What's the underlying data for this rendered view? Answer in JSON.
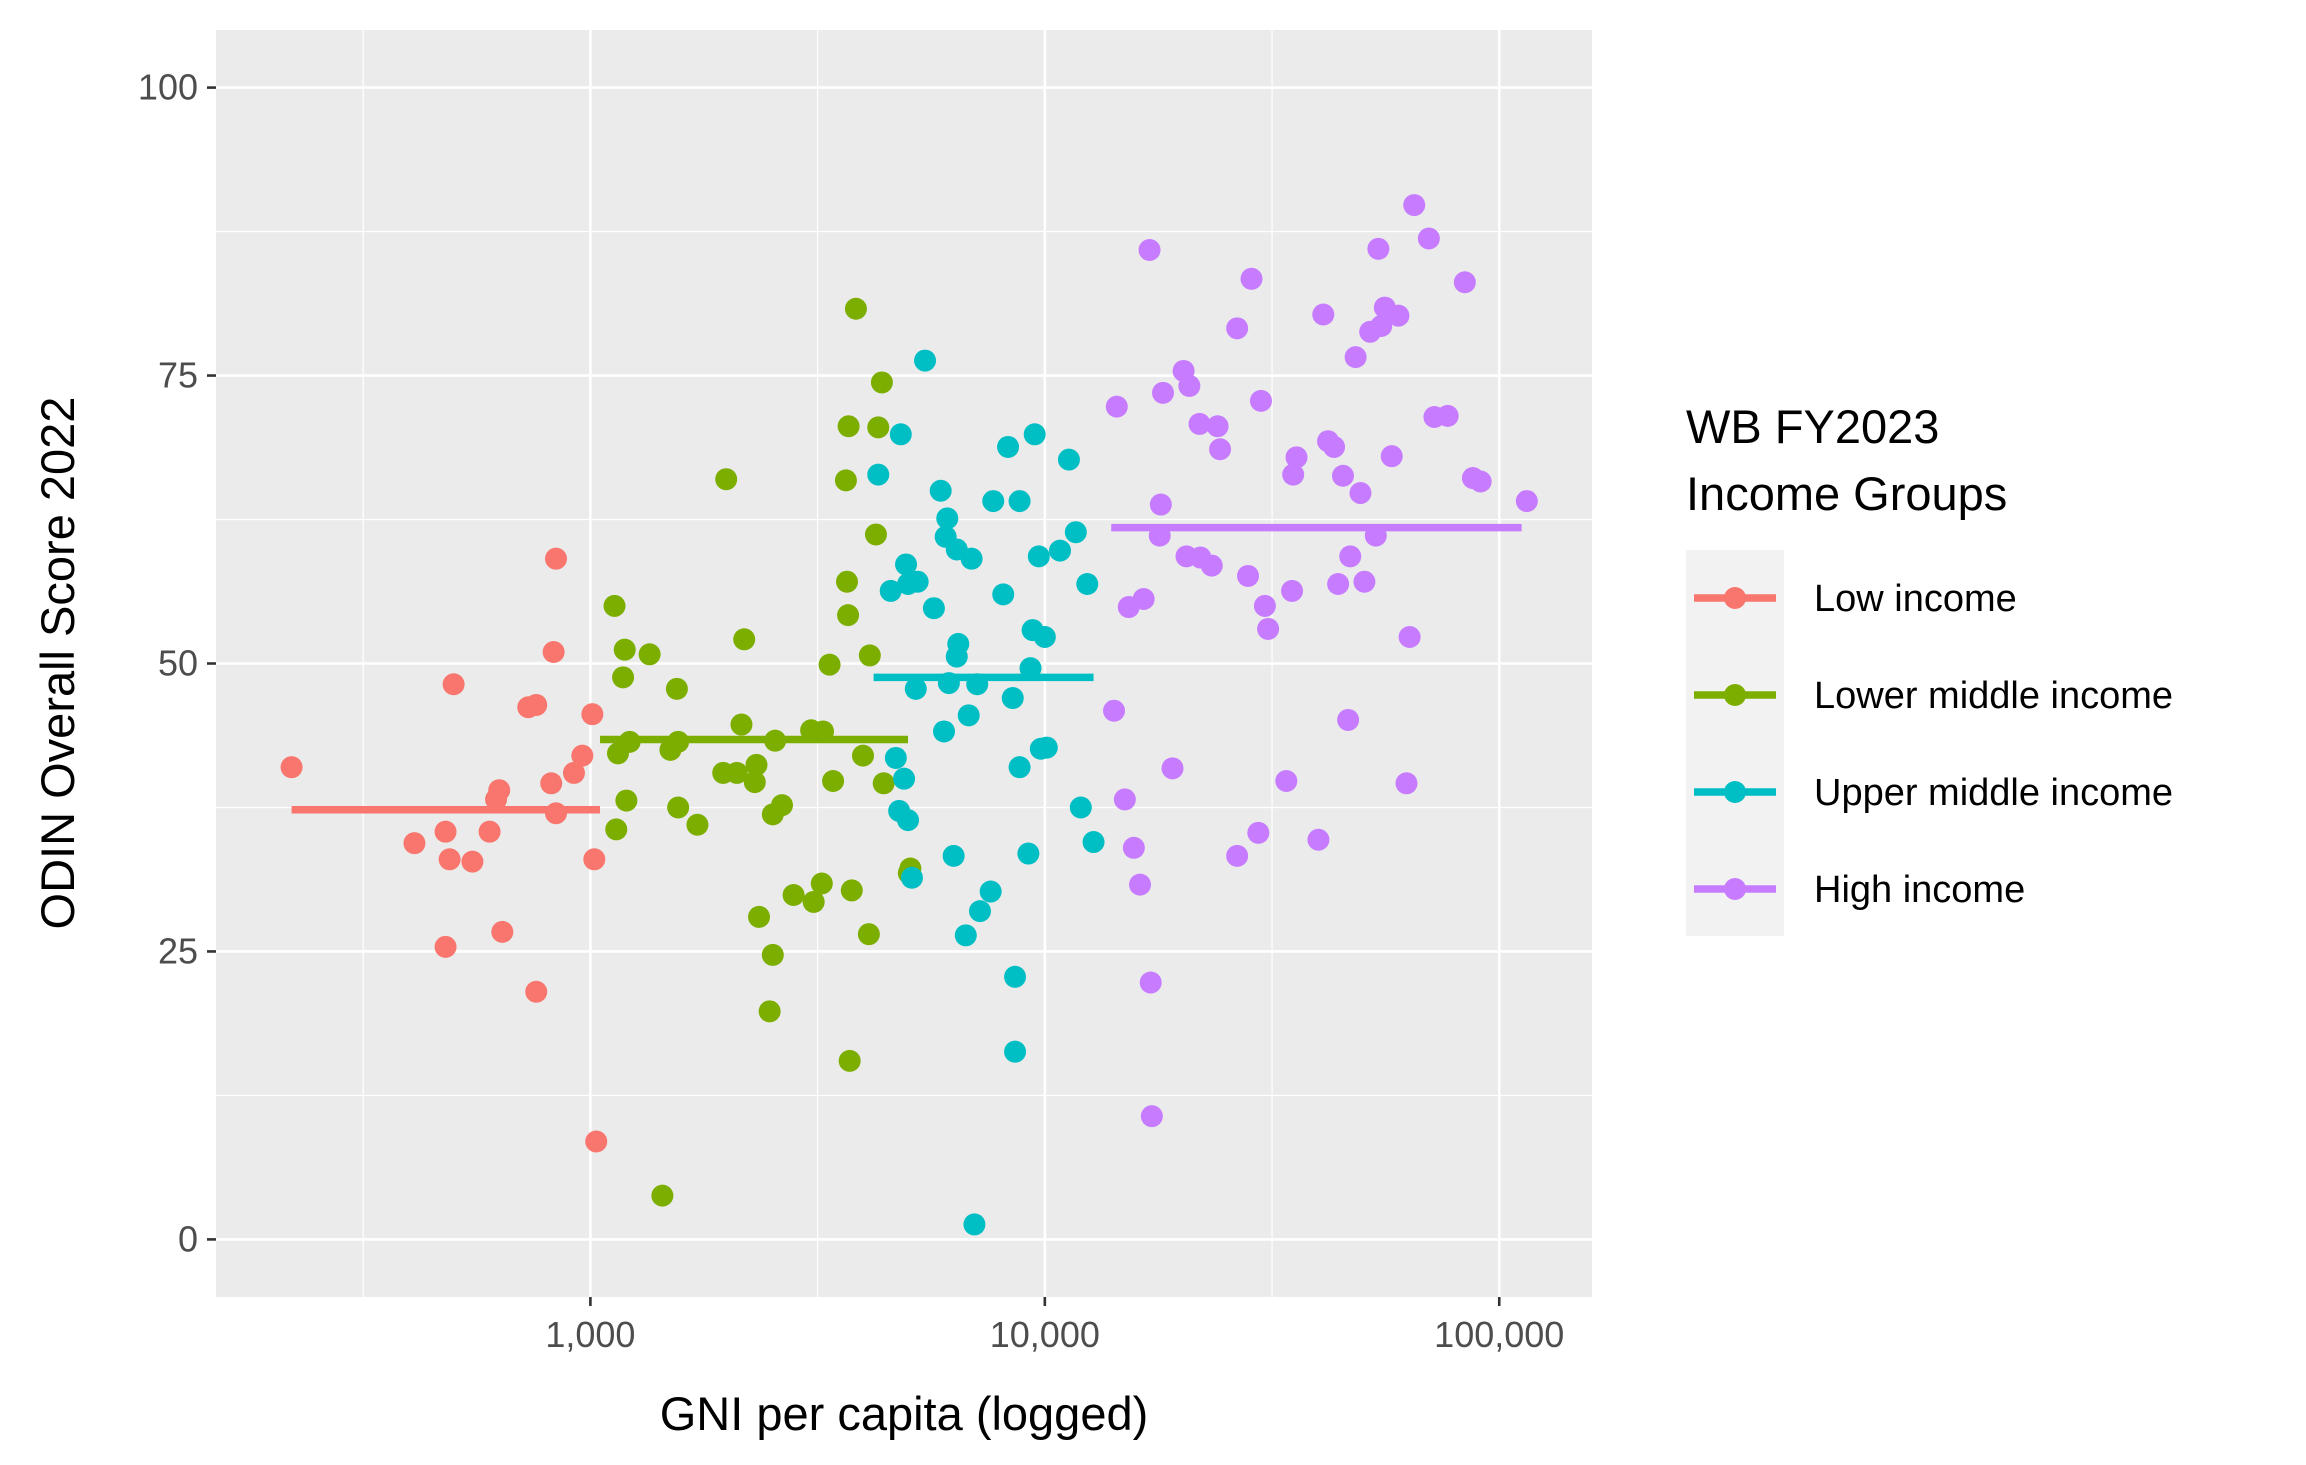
{
  "chart_data": {
    "type": "scatter",
    "xlabel": "GNI per capita (logged)",
    "ylabel": "ODIN Overall Score 2022",
    "x_scale": "log10",
    "xlim": [
      150,
      160000
    ],
    "ylim": [
      -5,
      105
    ],
    "x_ticks": [
      {
        "value": 1000,
        "label": "1,000"
      },
      {
        "value": 10000,
        "label": "10,000"
      },
      {
        "value": 100000,
        "label": "100,000"
      }
    ],
    "y_ticks": [
      {
        "value": 0,
        "label": "0"
      },
      {
        "value": 25,
        "label": "25"
      },
      {
        "value": 50,
        "label": "50"
      },
      {
        "value": 75,
        "label": "75"
      },
      {
        "value": 100,
        "label": "100"
      }
    ],
    "grid": true,
    "legend_position": "right",
    "legend_title": [
      "WB FY2023",
      "Income Groups"
    ],
    "series": [
      {
        "name": "Low income",
        "color": "#F8766D",
        "mean_line": {
          "x_start": 220,
          "x_end": 1050,
          "y": 37.3
        },
        "points": [
          [
            220,
            41
          ],
          [
            500,
            48.2
          ],
          [
            410,
            34.4
          ],
          [
            480,
            35.4
          ],
          [
            490,
            33
          ],
          [
            480,
            25.4
          ],
          [
            550,
            32.8
          ],
          [
            600,
            35.4
          ],
          [
            620,
            38.2
          ],
          [
            630,
            39
          ],
          [
            640,
            26.7
          ],
          [
            730,
            46.2
          ],
          [
            760,
            46.4
          ],
          [
            760,
            21.5
          ],
          [
            820,
            39.6
          ],
          [
            830,
            51
          ],
          [
            840,
            59.1
          ],
          [
            840,
            37
          ],
          [
            920,
            40.5
          ],
          [
            960,
            42
          ],
          [
            1010,
            45.6
          ],
          [
            1020,
            33
          ],
          [
            1030,
            8.5
          ]
        ]
      },
      {
        "name": "Lower middle income",
        "color": "#7CAE00",
        "mean_line": {
          "x_start": 1050,
          "x_end": 5000,
          "y": 43.4
        },
        "points": [
          [
            1130,
            55
          ],
          [
            1190,
            51.2
          ],
          [
            1180,
            48.8
          ],
          [
            1150,
            42.2
          ],
          [
            1220,
            43.2
          ],
          [
            1200,
            38.1
          ],
          [
            1140,
            35.6
          ],
          [
            1350,
            50.8
          ],
          [
            1440,
            3.8
          ],
          [
            1500,
            42.5
          ],
          [
            1550,
            47.8
          ],
          [
            1560,
            43.2
          ],
          [
            1560,
            37.5
          ],
          [
            1720,
            36
          ],
          [
            1960,
            40.5
          ],
          [
            1990,
            66
          ],
          [
            2100,
            40.5
          ],
          [
            2150,
            44.7
          ],
          [
            2180,
            52.1
          ],
          [
            2300,
            39.7
          ],
          [
            2320,
            41.2
          ],
          [
            2350,
            28
          ],
          [
            2480,
            19.8
          ],
          [
            2520,
            24.7
          ],
          [
            2550,
            43.3
          ],
          [
            2520,
            36.9
          ],
          [
            2640,
            37.7
          ],
          [
            2800,
            29.9
          ],
          [
            3060,
            44.2
          ],
          [
            3100,
            29.3
          ],
          [
            3250,
            44.1
          ],
          [
            3230,
            30.9
          ],
          [
            3360,
            49.9
          ],
          [
            3420,
            39.8
          ],
          [
            3650,
            65.9
          ],
          [
            3670,
            57.1
          ],
          [
            3690,
            54.2
          ],
          [
            3700,
            70.6
          ],
          [
            3720,
            15.5
          ],
          [
            3760,
            30.3
          ],
          [
            3840,
            80.8
          ],
          [
            3980,
            42
          ],
          [
            4100,
            26.5
          ],
          [
            4120,
            50.7
          ],
          [
            4250,
            61.2
          ],
          [
            4300,
            70.5
          ],
          [
            4380,
            74.4
          ],
          [
            4420,
            39.6
          ],
          [
            5020,
            31.8
          ],
          [
            5060,
            32.2
          ]
        ]
      },
      {
        "name": "Upper middle income",
        "color": "#00BFC4",
        "mean_line": {
          "x_start": 4200,
          "x_end": 12800,
          "y": 48.8
        },
        "points": [
          [
            4300,
            66.4
          ],
          [
            4580,
            56.3
          ],
          [
            4700,
            41.8
          ],
          [
            4780,
            37.2
          ],
          [
            4820,
            69.9
          ],
          [
            4900,
            40
          ],
          [
            4950,
            58.6
          ],
          [
            5000,
            36.4
          ],
          [
            5000,
            56.9
          ],
          [
            5100,
            31.4
          ],
          [
            5200,
            47.8
          ],
          [
            5250,
            57.1
          ],
          [
            5450,
            76.3
          ],
          [
            5700,
            54.8
          ],
          [
            5900,
            65
          ],
          [
            6000,
            44.1
          ],
          [
            6050,
            61
          ],
          [
            6100,
            62.6
          ],
          [
            6150,
            48.3
          ],
          [
            6300,
            33.3
          ],
          [
            6400,
            59.9
          ],
          [
            6400,
            50.6
          ],
          [
            6450,
            51.7
          ],
          [
            6700,
            26.4
          ],
          [
            6800,
            45.5
          ],
          [
            6900,
            59.1
          ],
          [
            7000,
            1.3
          ],
          [
            7100,
            48.2
          ],
          [
            7200,
            28.5
          ],
          [
            7600,
            30.2
          ],
          [
            7700,
            64.1
          ],
          [
            8100,
            56
          ],
          [
            8300,
            68.8
          ],
          [
            8500,
            47
          ],
          [
            8600,
            22.8
          ],
          [
            8600,
            16.3
          ],
          [
            8800,
            64.1
          ],
          [
            8800,
            41
          ],
          [
            9200,
            33.5
          ],
          [
            9300,
            49.6
          ],
          [
            9400,
            52.9
          ],
          [
            9500,
            69.9
          ],
          [
            9700,
            59.3
          ],
          [
            9800,
            42.6
          ],
          [
            10000,
            52.3
          ],
          [
            10100,
            42.7
          ],
          [
            10800,
            59.8
          ],
          [
            11300,
            67.7
          ],
          [
            11700,
            61.4
          ],
          [
            12000,
            37.5
          ],
          [
            12400,
            56.9
          ],
          [
            12800,
            34.5
          ]
        ]
      },
      {
        "name": "High income",
        "color": "#C77CFF",
        "mean_line": {
          "x_start": 14000,
          "x_end": 112000,
          "y": 61.8
        },
        "points": [
          [
            14200,
            45.9
          ],
          [
            14400,
            72.3
          ],
          [
            15000,
            38.2
          ],
          [
            15300,
            54.9
          ],
          [
            15700,
            34
          ],
          [
            16200,
            30.8
          ],
          [
            16500,
            55.6
          ],
          [
            17000,
            85.9
          ],
          [
            17100,
            22.3
          ],
          [
            17200,
            10.7
          ],
          [
            17900,
            61.1
          ],
          [
            18000,
            63.8
          ],
          [
            18200,
            73.5
          ],
          [
            19100,
            40.9
          ],
          [
            20200,
            75.4
          ],
          [
            20500,
            59.3
          ],
          [
            20800,
            74.1
          ],
          [
            21900,
            70.8
          ],
          [
            22000,
            59.2
          ],
          [
            23300,
            58.5
          ],
          [
            24000,
            70.6
          ],
          [
            24300,
            68.6
          ],
          [
            26500,
            33.3
          ],
          [
            26500,
            79.1
          ],
          [
            28000,
            57.6
          ],
          [
            28500,
            83.4
          ],
          [
            29500,
            35.3
          ],
          [
            29900,
            72.8
          ],
          [
            30500,
            55
          ],
          [
            31000,
            53
          ],
          [
            34000,
            39.8
          ],
          [
            35000,
            56.3
          ],
          [
            35200,
            66.4
          ],
          [
            35800,
            67.9
          ],
          [
            40000,
            34.7
          ],
          [
            41000,
            80.3
          ],
          [
            42000,
            69.3
          ],
          [
            43300,
            68.8
          ],
          [
            44200,
            56.9
          ],
          [
            45300,
            66.3
          ],
          [
            46500,
            45.1
          ],
          [
            47000,
            59.3
          ],
          [
            48300,
            76.6
          ],
          [
            49500,
            64.8
          ],
          [
            50500,
            57.1
          ],
          [
            52000,
            78.8
          ],
          [
            53500,
            61.1
          ],
          [
            54200,
            86
          ],
          [
            55000,
            79.3
          ],
          [
            56000,
            80.9
          ],
          [
            58000,
            68
          ],
          [
            60000,
            80.2
          ],
          [
            62500,
            39.6
          ],
          [
            63500,
            52.3
          ],
          [
            65000,
            89.8
          ],
          [
            70000,
            86.9
          ],
          [
            72000,
            71.4
          ],
          [
            77000,
            71.5
          ],
          [
            84000,
            83.1
          ],
          [
            87500,
            66.1
          ],
          [
            91000,
            65.8
          ],
          [
            115000,
            64.1
          ]
        ]
      }
    ]
  }
}
